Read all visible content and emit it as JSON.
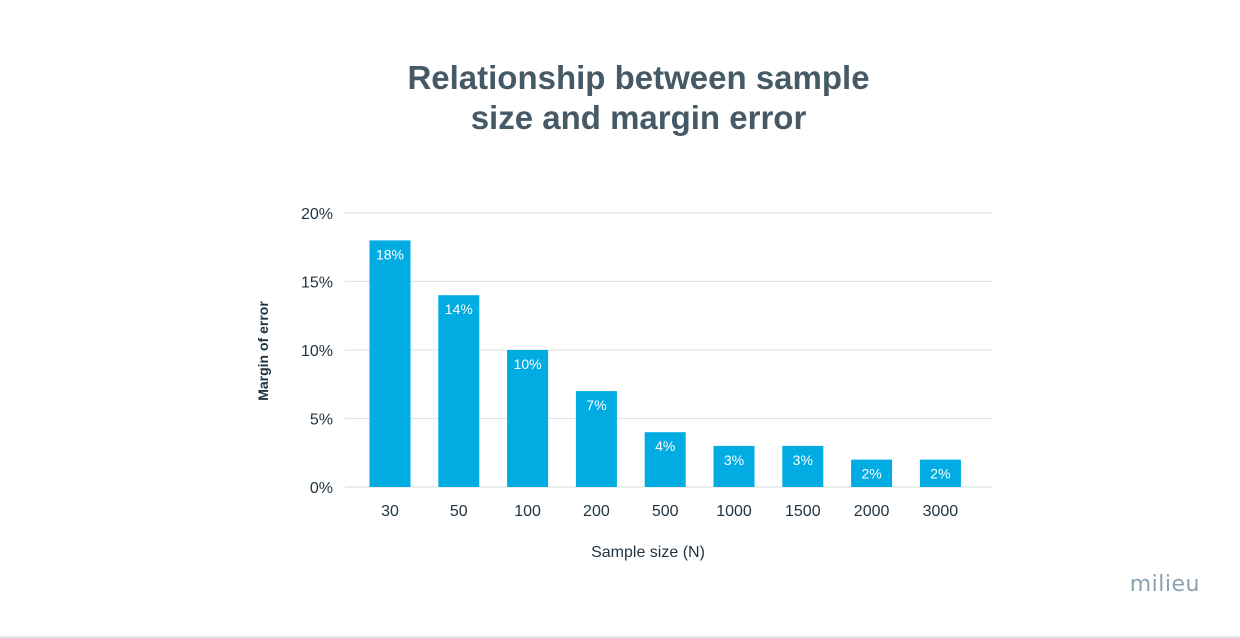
{
  "chart_data": {
    "type": "bar",
    "title_lines": [
      "Relationship between sample",
      "size and margin error"
    ],
    "xlabel": "Sample size (N)",
    "ylabel": "Margin of error",
    "categories": [
      "30",
      "50",
      "100",
      "200",
      "500",
      "1000",
      "1500",
      "2000",
      "3000"
    ],
    "values": [
      18,
      14,
      10,
      7,
      4,
      3,
      3,
      2,
      2
    ],
    "value_labels": [
      "18%",
      "14%",
      "10%",
      "7%",
      "4%",
      "3%",
      "3%",
      "2%",
      "2%"
    ],
    "ylim": [
      0,
      20
    ],
    "yticks": [
      0,
      5,
      10,
      15,
      20
    ],
    "ytick_labels": [
      "0%",
      "5%",
      "10%",
      "15%",
      "20%"
    ],
    "grid": true,
    "colors": {
      "bar": "#00ace2",
      "grid": "#dde5e8",
      "text": "#1f3340",
      "label": "#ffffff"
    }
  },
  "brand": {
    "name": "milieu"
  }
}
